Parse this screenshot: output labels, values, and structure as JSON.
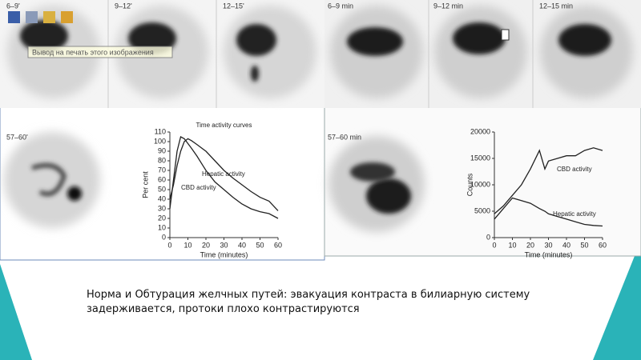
{
  "panels_left": [
    "6–9'",
    "9–12'",
    "12–15'",
    "57–60'"
  ],
  "panels_right": [
    "6–9 min",
    "9–12 min",
    "12–15 min",
    "57–60 min"
  ],
  "tooltip": "Вывод на печать этого изображения",
  "caption": "Норма и Обтурация желчных путей: эвакуация контраста в билиарную систему задерживается, протоки плохо контрастируются",
  "chart_data": [
    {
      "type": "line",
      "title": "Time activity curves",
      "xlabel": "Time (minutes)",
      "ylabel": "Per cent",
      "x": [
        0,
        2,
        4,
        6,
        8,
        10,
        12,
        15,
        20,
        25,
        30,
        35,
        40,
        45,
        50,
        55,
        60
      ],
      "xlim": [
        0,
        60
      ],
      "xticks": [
        0,
        10,
        20,
        30,
        40,
        50,
        60
      ],
      "ylim": [
        0,
        110
      ],
      "yticks": [
        0,
        10,
        20,
        30,
        40,
        50,
        60,
        70,
        80,
        90,
        100,
        110
      ],
      "series": [
        {
          "name": "Hepatic activity",
          "color": "#222222",
          "values": [
            30,
            60,
            90,
            105,
            103,
            98,
            93,
            85,
            70,
            58,
            50,
            42,
            35,
            30,
            27,
            25,
            20
          ]
        },
        {
          "name": "CBD activity",
          "color": "#222222",
          "values": [
            40,
            55,
            75,
            90,
            100,
            103,
            101,
            97,
            90,
            80,
            70,
            62,
            55,
            48,
            42,
            38,
            28
          ]
        }
      ]
    },
    {
      "type": "line",
      "xlabel": "Time (minutes)",
      "ylabel": "Counts",
      "x": [
        0,
        5,
        10,
        15,
        20,
        25,
        28,
        30,
        35,
        40,
        45,
        50,
        55,
        60
      ],
      "xlim": [
        0,
        60
      ],
      "xticks": [
        0,
        10,
        20,
        30,
        40,
        50,
        60
      ],
      "ylim": [
        0,
        20000
      ],
      "yticks": [
        0,
        5000,
        10000,
        15000,
        20000
      ],
      "series": [
        {
          "name": "CBD activity",
          "color": "#222222",
          "values": [
            4500,
            6000,
            8000,
            10000,
            13000,
            16500,
            13000,
            14500,
            15000,
            15500,
            15500,
            16500,
            17000,
            16500
          ]
        },
        {
          "name": "Hepatic activity",
          "color": "#222222",
          "values": [
            3500,
            5500,
            7500,
            7000,
            6500,
            5500,
            5000,
            4500,
            4000,
            3500,
            3000,
            2500,
            2300,
            2200
          ]
        }
      ]
    }
  ]
}
